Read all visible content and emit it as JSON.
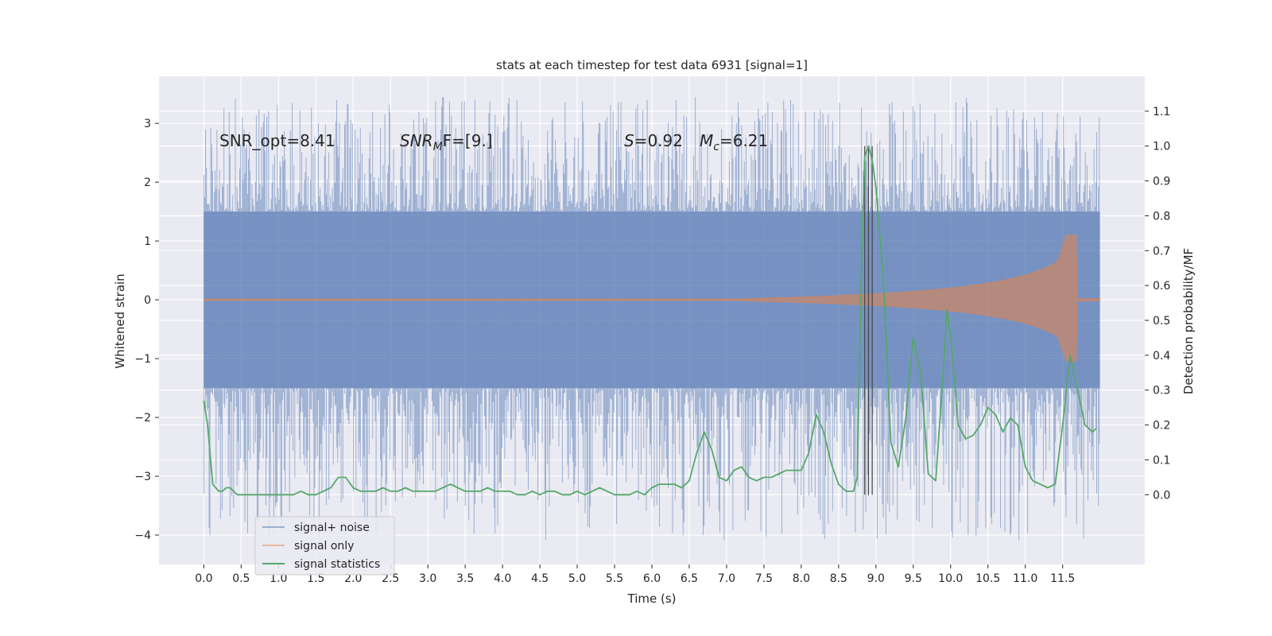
{
  "chart_data": {
    "type": "line",
    "title": "stats at each timestep for test data 6931 [signal=1]",
    "xlabel": "Time (s)",
    "ylabel_left": "Whitened strain",
    "ylabel_right": "Detection probability/MF",
    "xlim": [
      -0.6,
      12.6
    ],
    "ylim_left": [
      -4.5,
      3.8
    ],
    "ylim_right": [
      -0.2,
      1.2
    ],
    "x_ticks": [
      0.0,
      0.5,
      1.0,
      1.5,
      2.0,
      2.5,
      3.0,
      3.5,
      4.0,
      4.5,
      5.0,
      5.5,
      6.0,
      6.5,
      7.0,
      7.5,
      8.0,
      8.5,
      9.0,
      9.5,
      10.0,
      10.5,
      11.0,
      11.5
    ],
    "x_tick_labels": [
      "0.0",
      "0.5",
      "1.0",
      "1.5",
      "2.0",
      "2.5",
      "3.0",
      "3.5",
      "4.0",
      "4.5",
      "5.0",
      "5.5",
      "6.0",
      "6.5",
      "7.0",
      "7.5",
      "8.0",
      "8.5",
      "9.0",
      "9.5",
      "10.0",
      "10.5",
      "11.0",
      "11.5"
    ],
    "y_ticks_left": [
      3,
      2,
      1,
      0,
      -1,
      -2,
      -3,
      -4
    ],
    "y_tick_labels_left": [
      "3",
      "2",
      "1",
      "0",
      "−1",
      "−2",
      "−3",
      "−4"
    ],
    "y_ticks_right": [
      1.1,
      1.0,
      0.9,
      0.8,
      0.7,
      0.6,
      0.5,
      0.4,
      0.3,
      0.2,
      0.1,
      0.0
    ],
    "y_tick_labels_right": [
      "1.1",
      "1.0",
      "0.9",
      "0.8",
      "0.7",
      "0.6",
      "0.5",
      "0.4",
      "0.3",
      "0.2",
      "0.1",
      "0.0"
    ],
    "annotations": {
      "snr_opt": "SNR_opt=8.41",
      "snr_mf_base": "SNR",
      "snr_mf_sub": "M",
      "snr_mf_tail": "F=[9.]",
      "s_var": "S",
      "s_val": "=0.92",
      "mc_var": "M",
      "mc_sub": "c",
      "mc_val": "=6.21"
    },
    "noise": {
      "t_start": 0.0,
      "t_end": 12.0,
      "envelope_core": 1.5,
      "peak_max": 3.45,
      "peak_min": -4.1
    },
    "signal_only": {
      "t_start": 0.0,
      "t_onset": 7.0,
      "t_merger": 11.68,
      "t_end": 12.0,
      "peak_amplitude": 1.1
    },
    "detection_markers": [
      8.85,
      8.9,
      8.95
    ],
    "series": [
      {
        "name": "signal statistics",
        "axis": "right",
        "x": [
          0.0,
          0.05,
          0.12,
          0.2,
          0.25,
          0.3,
          0.35,
          0.45,
          0.55,
          0.65,
          0.8,
          0.9,
          1.0,
          1.1,
          1.2,
          1.3,
          1.4,
          1.5,
          1.6,
          1.7,
          1.8,
          1.9,
          2.0,
          2.1,
          2.2,
          2.3,
          2.4,
          2.5,
          2.6,
          2.7,
          2.8,
          2.9,
          3.0,
          3.1,
          3.2,
          3.3,
          3.4,
          3.5,
          3.6,
          3.7,
          3.8,
          3.9,
          4.0,
          4.1,
          4.2,
          4.3,
          4.4,
          4.5,
          4.6,
          4.7,
          4.8,
          4.9,
          5.0,
          5.1,
          5.2,
          5.3,
          5.4,
          5.5,
          5.6,
          5.7,
          5.8,
          5.9,
          6.0,
          6.1,
          6.2,
          6.3,
          6.4,
          6.5,
          6.6,
          6.7,
          6.8,
          6.9,
          7.0,
          7.1,
          7.2,
          7.3,
          7.4,
          7.5,
          7.6,
          7.7,
          7.8,
          7.9,
          8.0,
          8.1,
          8.2,
          8.3,
          8.4,
          8.5,
          8.6,
          8.7,
          8.75,
          8.8,
          8.85,
          8.9,
          8.95,
          9.0,
          9.1,
          9.2,
          9.3,
          9.4,
          9.5,
          9.6,
          9.7,
          9.8,
          9.9,
          9.95,
          10.0,
          10.1,
          10.2,
          10.3,
          10.4,
          10.5,
          10.6,
          10.7,
          10.8,
          10.9,
          11.0,
          11.1,
          11.2,
          11.3,
          11.4,
          11.5,
          11.6,
          11.65,
          11.7,
          11.8,
          11.9,
          11.95
        ],
        "y": [
          0.27,
          0.2,
          0.03,
          0.01,
          0.01,
          0.02,
          0.02,
          0.0,
          0.0,
          0.0,
          0.0,
          0.0,
          0.0,
          0.0,
          0.0,
          0.01,
          0.0,
          0.0,
          0.01,
          0.02,
          0.05,
          0.05,
          0.02,
          0.01,
          0.01,
          0.01,
          0.02,
          0.01,
          0.01,
          0.02,
          0.01,
          0.01,
          0.01,
          0.01,
          0.02,
          0.03,
          0.02,
          0.01,
          0.01,
          0.01,
          0.02,
          0.01,
          0.01,
          0.01,
          0.0,
          0.0,
          0.01,
          0.0,
          0.01,
          0.01,
          0.0,
          0.0,
          0.01,
          0.0,
          0.01,
          0.02,
          0.01,
          0.0,
          0.0,
          0.0,
          0.01,
          0.0,
          0.02,
          0.03,
          0.03,
          0.03,
          0.02,
          0.04,
          0.12,
          0.18,
          0.13,
          0.05,
          0.04,
          0.07,
          0.08,
          0.05,
          0.04,
          0.05,
          0.05,
          0.06,
          0.07,
          0.07,
          0.07,
          0.12,
          0.23,
          0.18,
          0.09,
          0.03,
          0.01,
          0.01,
          0.05,
          0.6,
          0.97,
          1.0,
          0.96,
          0.88,
          0.62,
          0.15,
          0.08,
          0.22,
          0.45,
          0.35,
          0.06,
          0.04,
          0.35,
          0.53,
          0.46,
          0.2,
          0.16,
          0.17,
          0.2,
          0.25,
          0.23,
          0.18,
          0.22,
          0.2,
          0.08,
          0.04,
          0.03,
          0.02,
          0.03,
          0.2,
          0.4,
          0.35,
          0.3,
          0.2,
          0.18,
          0.19
        ],
        "color": "#55a868"
      }
    ],
    "legend": {
      "placement": "lower-left",
      "entries": [
        {
          "label": "signal+ noise",
          "color": "#4c72b0"
        },
        {
          "label": "signal only",
          "color": "#dd8452"
        },
        {
          "label": "signal statistics",
          "color": "#55a868"
        }
      ]
    },
    "colors": {
      "page_background": "#ffffff",
      "axes_background": "#eaeaf2",
      "grid": "#ffffff",
      "noise": "#4c72b0",
      "signal_only": "#dd8452",
      "statistics": "#55a868",
      "marker_line": "#444444"
    }
  }
}
